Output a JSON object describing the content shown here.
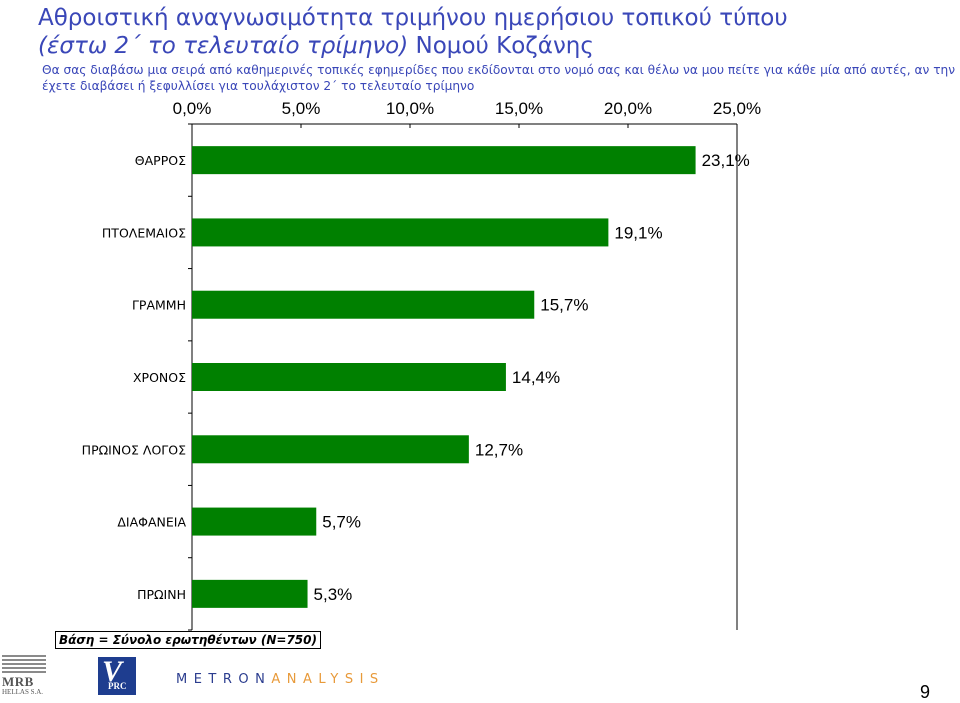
{
  "header": {
    "title_line1": "Αθροιστική αναγνωσιμότητα τριμήνου ημερήσιου τοπικού τύπου",
    "title_line2_italic": "(έστω 2΄ το τελευταίο τρίμηνο)",
    "title_line2_rest": " Νομού Κοζάνης",
    "question": "Θα σας διαβάσω μια σειρά από καθημερινές τοπικές εφημερίδες που εκδίδονται στο νομό σας και θέλω να μου πείτε για κάθε μία από αυτές, αν την έχετε διαβάσει ή ξεφυλλίσει για τουλάχιστον 2΄ το τελευταίο τρίμηνο"
  },
  "chart_data": {
    "type": "bar",
    "orientation": "horizontal",
    "categories": [
      "ΘΑΡΡΟΣ",
      "ΠΤΟΛΕΜΑΙΟΣ",
      "ΓΡΑΜΜΗ",
      "ΧΡΟΝΟΣ",
      "ΠΡΩΙΝΟΣ ΛΟΓΟΣ",
      "ΔΙΑΦΑΝΕΙΑ",
      "ΠΡΩΙΝΗ"
    ],
    "values": [
      23.1,
      19.1,
      15.7,
      14.4,
      12.7,
      5.7,
      5.3
    ],
    "value_labels": [
      "23,1%",
      "19,1%",
      "15,7%",
      "14,4%",
      "12,7%",
      "5,7%",
      "5,3%"
    ],
    "x_ticks": [
      "0,0%",
      "5,0%",
      "10,0%",
      "15,0%",
      "20,0%",
      "25,0%"
    ],
    "xlim": [
      0,
      25
    ],
    "axis_position": "top",
    "grid": false,
    "legend": "none",
    "bar_color": "#008000"
  },
  "footnote": "Βάση = Σύνολο ερωτηθέντων (Ν=750)",
  "page_number": "9",
  "logos": {
    "mrb_word": "MRB",
    "mrb_sub": "HELLAS S.A.",
    "vprc_v": "V",
    "vprc_text": "PRC",
    "metron_part1": "METRON",
    "metron_part2": "ANALYSIS"
  }
}
